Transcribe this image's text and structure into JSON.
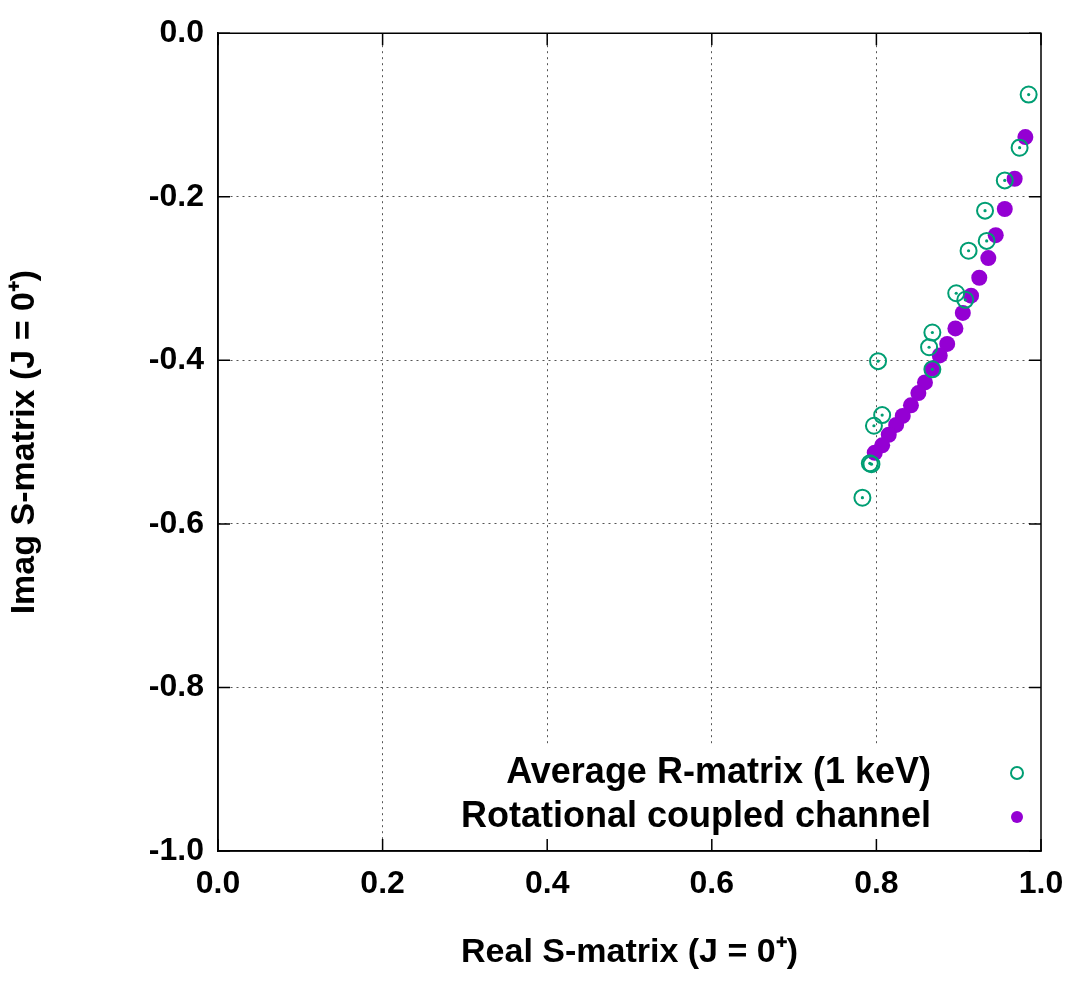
{
  "chart_data": {
    "type": "scatter",
    "xlabel": "Real S-matrix (J = 0⁺)",
    "ylabel": "Imag S-matrix (J = 0⁺)",
    "xlim": [
      0,
      1
    ],
    "ylim": [
      -1,
      0
    ],
    "xticks": [
      {
        "value": 0,
        "label": "0.0"
      },
      {
        "value": 0.2,
        "label": "0.2"
      },
      {
        "value": 0.4,
        "label": "0.4"
      },
      {
        "value": 0.6,
        "label": "0.6"
      },
      {
        "value": 0.8,
        "label": "0.8"
      },
      {
        "value": 1,
        "label": "1.0"
      }
    ],
    "yticks": [
      {
        "value": -1,
        "label": "-1.0"
      },
      {
        "value": -0.8,
        "label": "-0.8"
      },
      {
        "value": -0.6,
        "label": "-0.6"
      },
      {
        "value": -0.4,
        "label": "-0.4"
      },
      {
        "value": -0.2,
        "label": "-0.2"
      },
      {
        "value": 0,
        "label": "0.0"
      }
    ],
    "grid": true,
    "legend": "bottom right",
    "marker": "circle",
    "series": [
      {
        "name": "Average R-matrix (1 keV)",
        "color": "#009e73",
        "x": [
          0.985,
          0.974,
          0.956,
          0.932,
          0.934,
          0.912,
          0.908,
          0.897,
          0.868,
          0.864,
          0.868,
          0.802,
          0.807,
          0.797,
          0.792,
          0.794,
          0.783
        ],
        "values": [
          -0.075,
          -0.14,
          -0.18,
          -0.217,
          -0.254,
          -0.266,
          -0.326,
          -0.318,
          -0.366,
          -0.384,
          -0.411,
          -0.401,
          -0.467,
          -0.48,
          -0.526,
          -0.527,
          -0.568
        ]
      },
      {
        "name": "Rotational coupled channel",
        "color": "#9400d3",
        "x": [
          0.981,
          0.968,
          0.956,
          0.945,
          0.936,
          0.925,
          0.915,
          0.905,
          0.896,
          0.886,
          0.877,
          0.868,
          0.859,
          0.851,
          0.842,
          0.832,
          0.824,
          0.815,
          0.807,
          0.798
        ],
        "values": [
          -0.127,
          -0.178,
          -0.215,
          -0.247,
          -0.275,
          -0.299,
          -0.321,
          -0.342,
          -0.361,
          -0.38,
          -0.394,
          -0.41,
          -0.427,
          -0.44,
          -0.455,
          -0.468,
          -0.479,
          -0.491,
          -0.504,
          -0.513
        ]
      }
    ]
  }
}
